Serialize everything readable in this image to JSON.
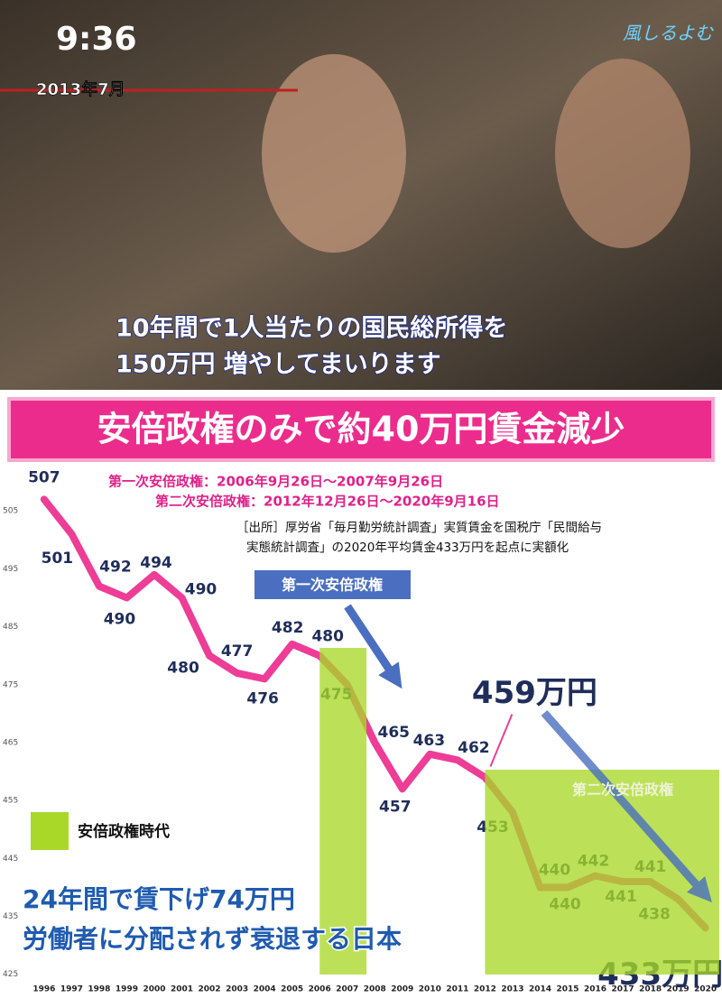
{
  "photo": {
    "time": "9:36",
    "date": "2013年7月",
    "logo": "風しるよむ",
    "caption_lines": [
      "10年間で1人当たりの国民総所得を",
      "150万円 増やしてまいります"
    ]
  },
  "banner": "安倍政権のみで約40万円賃金減少",
  "chart_data": {
    "type": "line",
    "notes": [
      "第一次安倍政権：2006年9月26日～2007年9月26日",
      "第二次安倍政権：2012年12月26日～2020年9月16日"
    ],
    "source_lines": [
      "［出所］厚労省「毎月勤労統計調査」実質賃金を国税庁「民間給与",
      "実態統計調査」の2020年平均賃金433万円を起点に実額化"
    ],
    "x": [
      1996,
      1997,
      1998,
      1999,
      2000,
      2001,
      2002,
      2003,
      2004,
      2005,
      2006,
      2007,
      2008,
      2009,
      2010,
      2011,
      2012,
      2013,
      2014,
      2015,
      2016,
      2017,
      2018,
      2019,
      2020
    ],
    "values": [
      507,
      501,
      492,
      490,
      494,
      490,
      480,
      477,
      476,
      482,
      480,
      475,
      465,
      457,
      463,
      462,
      459,
      453,
      440,
      440,
      442,
      441,
      441,
      438,
      433
    ],
    "value_labels": [
      "507",
      "501",
      "492",
      "490",
      "494",
      "490",
      "480",
      "477",
      "476",
      "482",
      "480",
      "475",
      "465",
      "457",
      "463",
      "462",
      "459万円",
      "453",
      "440",
      "440",
      "442",
      "441",
      "441",
      "438",
      "433万円"
    ],
    "color": "#ee3d96",
    "xlim": [
      1994.4,
      2020.6
    ],
    "xticks": [
      1996,
      1997,
      1998,
      1999,
      2000,
      2001,
      2002,
      2003,
      2004,
      2005,
      2006,
      2007,
      2008,
      2009,
      2010,
      2011,
      2012,
      2013,
      2014,
      2015,
      2016,
      2017,
      2018,
      2019,
      2020
    ],
    "ylim": [
      423.4,
      512.2
    ],
    "yticks": [
      425,
      435,
      445,
      455,
      465,
      475,
      485,
      495,
      505
    ],
    "bands": [
      {
        "from": 2006,
        "to": 2007.7,
        "label": "第一次安倍政権"
      },
      {
        "from": 2012,
        "to": 2020.5,
        "label": "第二次安倍政権"
      }
    ],
    "band_color": "#a9d829",
    "legend_label": "安倍政権時代",
    "annotations": [
      "24年間で賃下げ74万円",
      "労働者に分配されず衰退する日本"
    ]
  }
}
